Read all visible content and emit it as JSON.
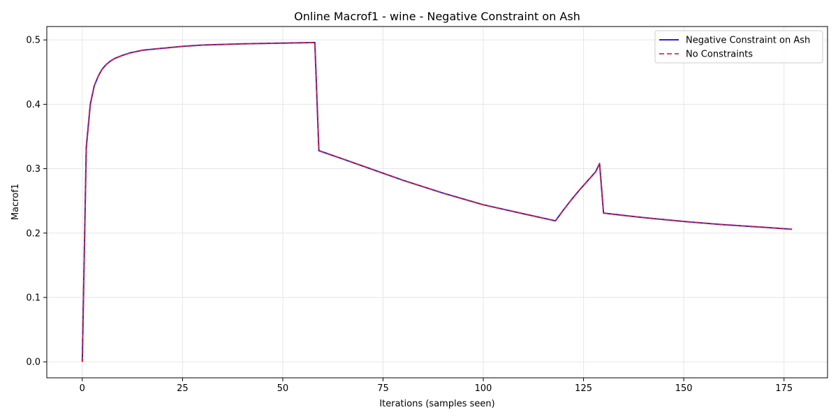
{
  "chart_data": {
    "type": "line",
    "title": "Online Macrof1 - wine - Negative Constraint on Ash",
    "xlabel": "Iterations (samples seen)",
    "ylabel": "Macrof1",
    "xlim": [
      -8.85,
      185.85
    ],
    "ylim": [
      -0.0248,
      0.5208
    ],
    "xticks": [
      0,
      25,
      50,
      75,
      100,
      125,
      150,
      175
    ],
    "yticks": [
      0.0,
      0.1,
      0.2,
      0.3,
      0.4,
      0.5
    ],
    "xtick_labels": [
      "0",
      "25",
      "50",
      "75",
      "100",
      "125",
      "150",
      "175"
    ],
    "ytick_labels": [
      "0.0",
      "0.1",
      "0.2",
      "0.3",
      "0.4",
      "0.5"
    ],
    "grid": true,
    "legend_position": "top-right",
    "series": [
      {
        "name": "Negative Constraint on Ash",
        "color": "#0000cc",
        "style": "solid",
        "points": [
          [
            0,
            0.0
          ],
          [
            1,
            0.333
          ],
          [
            2,
            0.4
          ],
          [
            3,
            0.429
          ],
          [
            4,
            0.444
          ],
          [
            5,
            0.455
          ],
          [
            6,
            0.462
          ],
          [
            7,
            0.467
          ],
          [
            8,
            0.471
          ],
          [
            10,
            0.476
          ],
          [
            12,
            0.48
          ],
          [
            15,
            0.484
          ],
          [
            20,
            0.487
          ],
          [
            25,
            0.49
          ],
          [
            30,
            0.492
          ],
          [
            40,
            0.494
          ],
          [
            50,
            0.495
          ],
          [
            58,
            0.496
          ],
          [
            59,
            0.328
          ],
          [
            65,
            0.315
          ],
          [
            70,
            0.304
          ],
          [
            80,
            0.282
          ],
          [
            90,
            0.262
          ],
          [
            100,
            0.244
          ],
          [
            110,
            0.23
          ],
          [
            118,
            0.219
          ],
          [
            120,
            0.236
          ],
          [
            122,
            0.252
          ],
          [
            124,
            0.267
          ],
          [
            126,
            0.281
          ],
          [
            128,
            0.295
          ],
          [
            129,
            0.308
          ],
          [
            130,
            0.231
          ],
          [
            140,
            0.224
          ],
          [
            150,
            0.218
          ],
          [
            160,
            0.213
          ],
          [
            170,
            0.209
          ],
          [
            177,
            0.206
          ]
        ]
      },
      {
        "name": "No Constraints",
        "color": "#ee2222",
        "style": "dashed",
        "points": [
          [
            0,
            0.0
          ],
          [
            1,
            0.333
          ],
          [
            2,
            0.4
          ],
          [
            3,
            0.429
          ],
          [
            4,
            0.444
          ],
          [
            5,
            0.455
          ],
          [
            6,
            0.462
          ],
          [
            7,
            0.467
          ],
          [
            8,
            0.471
          ],
          [
            10,
            0.476
          ],
          [
            12,
            0.48
          ],
          [
            15,
            0.484
          ],
          [
            20,
            0.487
          ],
          [
            25,
            0.49
          ],
          [
            30,
            0.492
          ],
          [
            40,
            0.494
          ],
          [
            50,
            0.495
          ],
          [
            58,
            0.496
          ],
          [
            59,
            0.328
          ],
          [
            65,
            0.315
          ],
          [
            70,
            0.304
          ],
          [
            80,
            0.282
          ],
          [
            90,
            0.262
          ],
          [
            100,
            0.244
          ],
          [
            110,
            0.23
          ],
          [
            118,
            0.219
          ],
          [
            120,
            0.236
          ],
          [
            122,
            0.252
          ],
          [
            124,
            0.267
          ],
          [
            126,
            0.281
          ],
          [
            128,
            0.295
          ],
          [
            129,
            0.308
          ],
          [
            130,
            0.231
          ],
          [
            140,
            0.224
          ],
          [
            150,
            0.218
          ],
          [
            160,
            0.213
          ],
          [
            170,
            0.209
          ],
          [
            177,
            0.206
          ]
        ]
      }
    ]
  }
}
